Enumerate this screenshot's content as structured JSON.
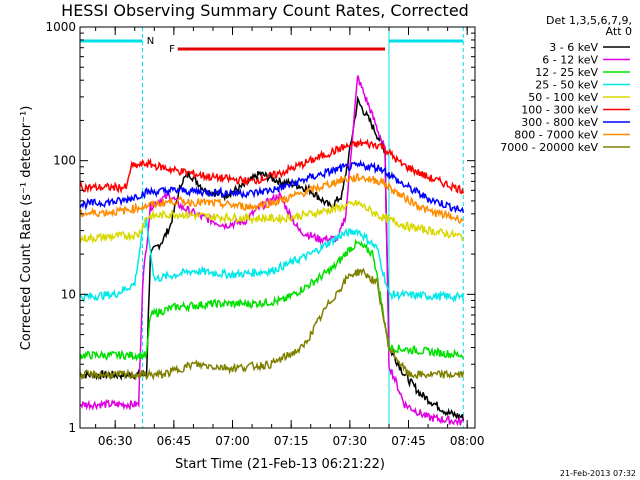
{
  "chart_data": {
    "type": "line",
    "title": "HESSI Observing Summary Count Rates, Corrected",
    "xlabel": "Start Time (21-Feb-13 06:21:22)",
    "ylabel": "Corrected Count Rate (s⁻¹ detector⁻¹)",
    "y_scale": "log",
    "ylim": [
      1,
      1000
    ],
    "xlim": [
      "06:21",
      "08:02"
    ],
    "x_ticks": [
      "06:30",
      "06:45",
      "07:00",
      "07:15",
      "07:30",
      "07:45",
      "08:00"
    ],
    "y_ticks": [
      "1",
      "10",
      "100",
      "1000"
    ],
    "legend_header": [
      "Det 1,3,5,6,7,9,",
      "Att 0"
    ],
    "legend_position": "right",
    "flags": [
      {
        "label": "N",
        "color": "#00e0e8"
      },
      {
        "label": "F",
        "color": "#e00000"
      }
    ],
    "series": [
      {
        "name": "3 - 6 keV",
        "color": "#000000",
        "points": [
          [
            "06:21",
            2.5
          ],
          [
            "06:38",
            2.5
          ],
          [
            "06:39",
            20
          ],
          [
            "06:42",
            25
          ],
          [
            "06:44",
            32
          ],
          [
            "06:47",
            70
          ],
          [
            "06:49",
            80
          ],
          [
            "06:53",
            60
          ],
          [
            "06:58",
            55
          ],
          [
            "07:03",
            65
          ],
          [
            "07:07",
            80
          ],
          [
            "07:12",
            70
          ],
          [
            "07:17",
            65
          ],
          [
            "07:20",
            60
          ],
          [
            "07:25",
            45
          ],
          [
            "07:28",
            55
          ],
          [
            "07:30",
            120
          ],
          [
            "07:32",
            280
          ],
          [
            "07:35",
            200
          ],
          [
            "07:39",
            120
          ],
          [
            "07:40",
            4
          ],
          [
            "07:44",
            2.5
          ],
          [
            "07:48",
            1.8
          ],
          [
            "07:55",
            1.3
          ],
          [
            "07:59",
            1.2
          ]
        ]
      },
      {
        "name": "6 - 12 keV",
        "color": "#e000e0",
        "points": [
          [
            "06:21",
            1.5
          ],
          [
            "06:36",
            1.5
          ],
          [
            "06:37",
            12
          ],
          [
            "06:39",
            45
          ],
          [
            "06:41",
            50
          ],
          [
            "06:44",
            55
          ],
          [
            "06:47",
            45
          ],
          [
            "06:52",
            38
          ],
          [
            "06:58",
            33
          ],
          [
            "07:03",
            35
          ],
          [
            "07:07",
            45
          ],
          [
            "07:12",
            55
          ],
          [
            "07:17",
            30
          ],
          [
            "07:22",
            26
          ],
          [
            "07:27",
            26
          ],
          [
            "07:29",
            40
          ],
          [
            "07:31",
            200
          ],
          [
            "07:32",
            420
          ],
          [
            "07:35",
            250
          ],
          [
            "07:39",
            120
          ],
          [
            "07:40",
            3
          ],
          [
            "07:44",
            1.5
          ],
          [
            "07:50",
            1.2
          ],
          [
            "07:59",
            1.1
          ]
        ]
      },
      {
        "name": "12 - 25 keV",
        "color": "#00e000",
        "points": [
          [
            "06:21",
            3.5
          ],
          [
            "06:38",
            3.5
          ],
          [
            "06:39",
            7
          ],
          [
            "06:45",
            8
          ],
          [
            "06:55",
            8.5
          ],
          [
            "07:05",
            8.5
          ],
          [
            "07:13",
            9
          ],
          [
            "07:20",
            12
          ],
          [
            "07:26",
            16
          ],
          [
            "07:30",
            22
          ],
          [
            "07:32",
            24
          ],
          [
            "07:36",
            20
          ],
          [
            "07:40",
            4
          ],
          [
            "07:59",
            3.5
          ]
        ]
      },
      {
        "name": "25 - 50 keV",
        "color": "#00e8e8",
        "points": [
          [
            "06:21",
            9.5
          ],
          [
            "06:30",
            10
          ],
          [
            "06:35",
            12
          ],
          [
            "06:37",
            30
          ],
          [
            "06:38",
            35
          ],
          [
            "06:40",
            13
          ],
          [
            "06:50",
            15
          ],
          [
            "07:00",
            14
          ],
          [
            "07:10",
            15
          ],
          [
            "07:20",
            20
          ],
          [
            "07:28",
            28
          ],
          [
            "07:32",
            30
          ],
          [
            "07:37",
            22
          ],
          [
            "07:40",
            10
          ],
          [
            "07:59",
            9.5
          ]
        ]
      },
      {
        "name": "50 - 100 keV",
        "color": "#d8d800",
        "points": [
          [
            "06:21",
            26
          ],
          [
            "06:36",
            28
          ],
          [
            "06:38",
            38
          ],
          [
            "06:45",
            40
          ],
          [
            "06:55",
            38
          ],
          [
            "07:05",
            37
          ],
          [
            "07:13",
            37
          ],
          [
            "07:20",
            40
          ],
          [
            "07:28",
            45
          ],
          [
            "07:32",
            48
          ],
          [
            "07:38",
            38
          ],
          [
            "07:45",
            32
          ],
          [
            "07:59",
            27
          ]
        ]
      },
      {
        "name": "100 - 300 keV",
        "color": "#ff0000",
        "points": [
          [
            "06:21",
            63
          ],
          [
            "06:33",
            63
          ],
          [
            "06:34",
            90
          ],
          [
            "06:38",
            95
          ],
          [
            "06:45",
            85
          ],
          [
            "06:55",
            75
          ],
          [
            "07:05",
            70
          ],
          [
            "07:12",
            80
          ],
          [
            "07:20",
            100
          ],
          [
            "07:28",
            125
          ],
          [
            "07:33",
            135
          ],
          [
            "07:38",
            130
          ],
          [
            "07:43",
            95
          ],
          [
            "07:50",
            75
          ],
          [
            "07:59",
            60
          ]
        ]
      },
      {
        "name": "300 - 800 keV",
        "color": "#0000ff",
        "points": [
          [
            "06:21",
            47
          ],
          [
            "06:32",
            50
          ],
          [
            "06:38",
            58
          ],
          [
            "06:45",
            60
          ],
          [
            "06:55",
            58
          ],
          [
            "07:05",
            57
          ],
          [
            "07:12",
            62
          ],
          [
            "07:20",
            75
          ],
          [
            "07:28",
            88
          ],
          [
            "07:33",
            92
          ],
          [
            "07:38",
            88
          ],
          [
            "07:43",
            68
          ],
          [
            "07:50",
            52
          ],
          [
            "07:59",
            42
          ]
        ]
      },
      {
        "name": "800 - 7000 keV",
        "color": "#ff8c00",
        "points": [
          [
            "06:21",
            40
          ],
          [
            "06:32",
            42
          ],
          [
            "06:38",
            46
          ],
          [
            "06:45",
            50
          ],
          [
            "06:55",
            48
          ],
          [
            "07:05",
            45
          ],
          [
            "07:12",
            50
          ],
          [
            "07:20",
            60
          ],
          [
            "07:28",
            72
          ],
          [
            "07:33",
            75
          ],
          [
            "07:38",
            70
          ],
          [
            "07:43",
            55
          ],
          [
            "07:50",
            42
          ],
          [
            "07:59",
            36
          ]
        ]
      },
      {
        "name": "7000 - 20000 keV",
        "color": "#808000",
        "points": [
          [
            "06:21",
            2.5
          ],
          [
            "06:38",
            2.5
          ],
          [
            "06:42",
            2.5
          ],
          [
            "06:50",
            3
          ],
          [
            "07:00",
            2.8
          ],
          [
            "07:10",
            3
          ],
          [
            "07:18",
            4
          ],
          [
            "07:24",
            8
          ],
          [
            "07:30",
            14
          ],
          [
            "07:33",
            15
          ],
          [
            "07:37",
            12
          ],
          [
            "07:40",
            4
          ],
          [
            "07:45",
            2.5
          ],
          [
            "07:59",
            2.5
          ]
        ]
      }
    ]
  },
  "footer": {
    "timestamp": "21-Feb-2013 07:32"
  }
}
